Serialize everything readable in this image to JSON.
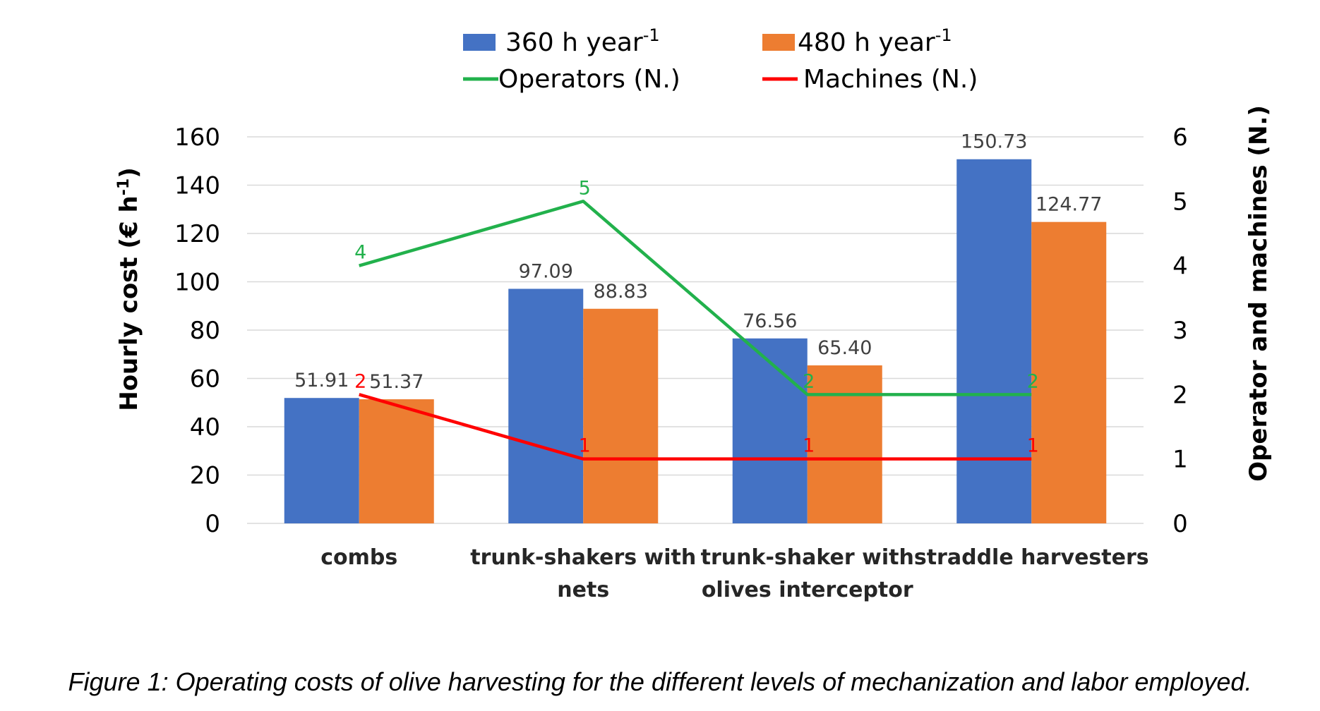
{
  "chart_data": {
    "type": "bar",
    "categories": [
      "combs",
      "trunk-shakers with nets",
      "trunk-shaker with olives interceptor",
      "straddle harvesters"
    ],
    "category_lines": [
      [
        "combs"
      ],
      [
        "trunk-shakers with",
        "nets"
      ],
      [
        "trunk-shaker with",
        "olives interceptor"
      ],
      [
        "straddle harvesters"
      ]
    ],
    "series": [
      {
        "name": "360 h year-1",
        "name_main": "360 h  year",
        "name_sup": "-1",
        "axis": "left",
        "kind": "bar",
        "color": "#4472C4",
        "values": [
          51.91,
          97.09,
          76.56,
          150.73
        ],
        "labels": [
          "51.91",
          "97.09",
          "76.56",
          "150.73"
        ]
      },
      {
        "name": "480 h year-1",
        "name_main": "480 h  year",
        "name_sup": "-1",
        "axis": "left",
        "kind": "bar",
        "color": "#ED7D31",
        "values": [
          51.37,
          88.83,
          65.4,
          124.77
        ],
        "labels": [
          "51.37",
          "88.83",
          "65.40",
          "124.77"
        ]
      },
      {
        "name": "Operators (N.)",
        "axis": "right",
        "kind": "line",
        "color": "#22B14C",
        "values": [
          4,
          5,
          2,
          2
        ],
        "labels": [
          "4",
          "5",
          "2",
          "2"
        ]
      },
      {
        "name": "Machines (N.)",
        "axis": "right",
        "kind": "line",
        "color": "#FF0000",
        "values": [
          2,
          1,
          1,
          1
        ],
        "labels": [
          "2",
          "1",
          "1",
          "1"
        ]
      }
    ],
    "ylabel_main": "Hourly cost (€ h",
    "ylabel_sup": "-1",
    "ylabel_end": ")",
    "ylim": [
      0,
      160
    ],
    "yticks": [
      0,
      20,
      40,
      60,
      80,
      100,
      120,
      140,
      160
    ],
    "y2label": "Operator and machines (N.)",
    "y2lim": [
      0,
      6
    ],
    "y2ticks": [
      0,
      1,
      2,
      3,
      4,
      5,
      6
    ],
    "grid": true,
    "legend_position": "top"
  },
  "caption": "Figure 1: Operating costs of olive harvesting for the different levels of mechanization and labor employed."
}
